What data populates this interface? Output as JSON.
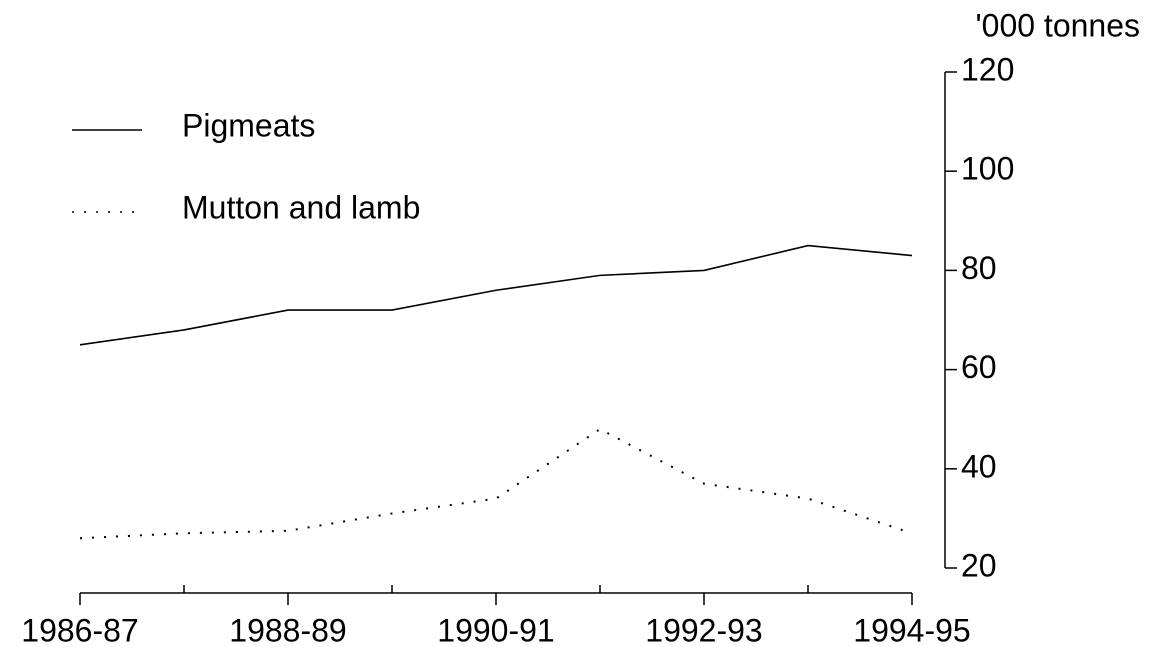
{
  "chart_data": {
    "type": "line",
    "y_axis_label": "'000 tonnes",
    "categories": [
      "1986-87",
      null,
      "1988-89",
      null,
      "1990-91",
      null,
      "1992-93",
      null,
      "1994-95"
    ],
    "series": [
      {
        "name": "Pigmeats",
        "color": "#000000",
        "dash": "solid",
        "values": [
          65,
          68,
          72,
          72,
          76,
          79,
          80,
          85,
          83
        ]
      },
      {
        "name": "Mutton and lamb",
        "color": "#000000",
        "dash": "dotted",
        "values": [
          26,
          27,
          27.5,
          31,
          34,
          48,
          37,
          34,
          27
        ]
      }
    ],
    "ylim": [
      20,
      120
    ],
    "yticks": [
      20,
      40,
      60,
      80,
      100,
      120
    ],
    "y_axis_side": "right",
    "grid": false,
    "legend": "top-left"
  }
}
